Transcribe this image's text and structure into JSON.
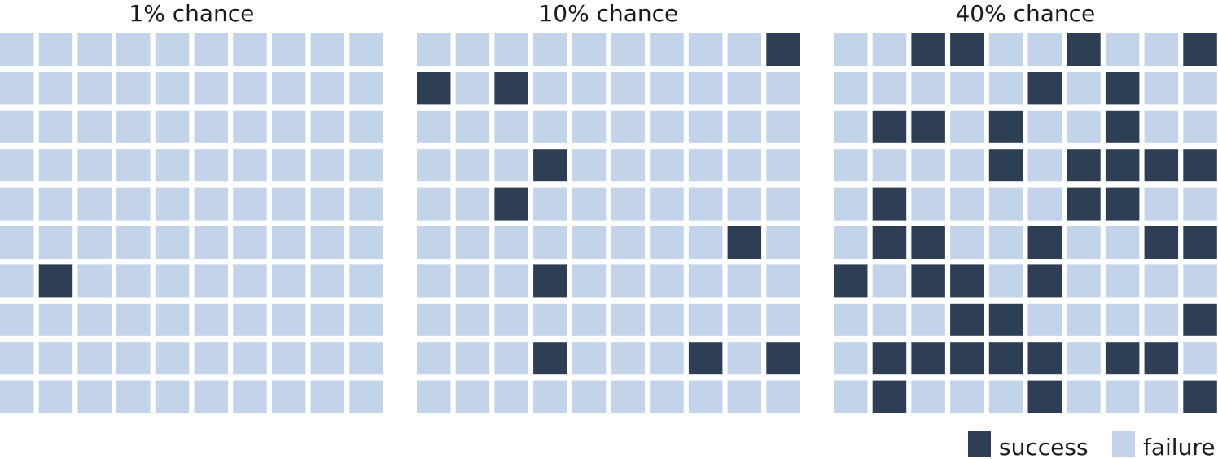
{
  "chart_data": {
    "type": "heatmap",
    "grid": {
      "rows": 10,
      "cols": 10
    },
    "colors": {
      "success": "#2e3f55",
      "failure": "#c3d3e9"
    },
    "legend": [
      {
        "key": "success",
        "label": "success"
      },
      {
        "key": "failure",
        "label": "failure"
      }
    ],
    "legend_placement": "bottom-right",
    "panels": [
      {
        "title": "1% chance",
        "success_count": 1,
        "cells": [
          "..........",
          "..........",
          "..........",
          "..........",
          "..........",
          "..........",
          ".#........",
          "..........",
          "..........",
          ".........."
        ]
      },
      {
        "title": "10% chance",
        "success_count": 10,
        "cells": [
          ".........#",
          "#.#.......",
          "..........",
          "...#......",
          "..#.......",
          "........#.",
          "...#......",
          "..........",
          "...#...#.#",
          ".........."
        ]
      },
      {
        "title": "40% chance",
        "success_count": 40,
        "cells": [
          "..##..#..#",
          ".....#.#..",
          ".##.#..#..",
          "....#.####",
          ".#....##..",
          ".##..#..##",
          "#.##.#....",
          "...##....#",
          ".#####.##.",
          ".#...#...#"
        ]
      }
    ]
  }
}
